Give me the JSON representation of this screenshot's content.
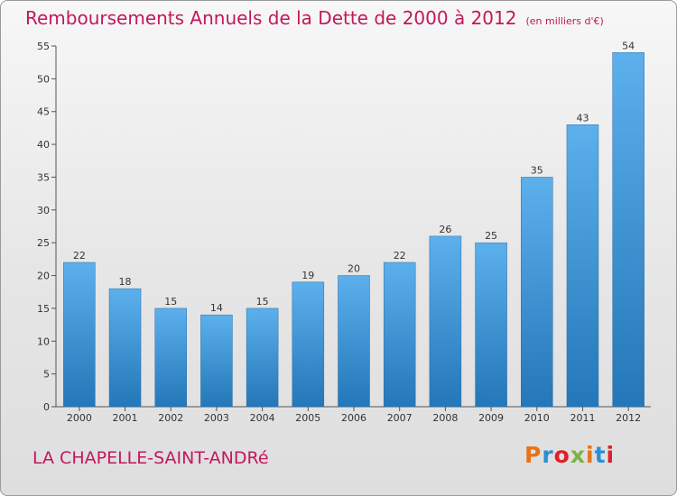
{
  "chart_data": {
    "type": "bar",
    "title": "Remboursements Annuels de la Dette de 2000 à 2012",
    "subtitle": "(en milliers d'€)",
    "categories": [
      "2000",
      "2001",
      "2002",
      "2003",
      "2004",
      "2005",
      "2006",
      "2007",
      "2008",
      "2009",
      "2010",
      "2011",
      "2012"
    ],
    "values": [
      22,
      18,
      15,
      14,
      15,
      19,
      20,
      22,
      26,
      25,
      35,
      43,
      54
    ],
    "ylim": [
      0,
      55
    ],
    "yticks": [
      0,
      5,
      10,
      15,
      20,
      25,
      30,
      35,
      40,
      45,
      50,
      55
    ],
    "grid": false,
    "xlabel": "",
    "ylabel": ""
  },
  "footer": {
    "commune": "LA CHAPELLE-SAINT-ANDRé",
    "logo": "Proxiti",
    "logo_colors": [
      "#e8731a",
      "#2a8fd6",
      "#e0202a",
      "#7cb342",
      "#e8731a",
      "#2a8fd6",
      "#e0202a"
    ]
  },
  "colors": {
    "title": "#c2185b",
    "bar_top": "#5cb0ec",
    "bar_bottom": "#2477b8"
  }
}
